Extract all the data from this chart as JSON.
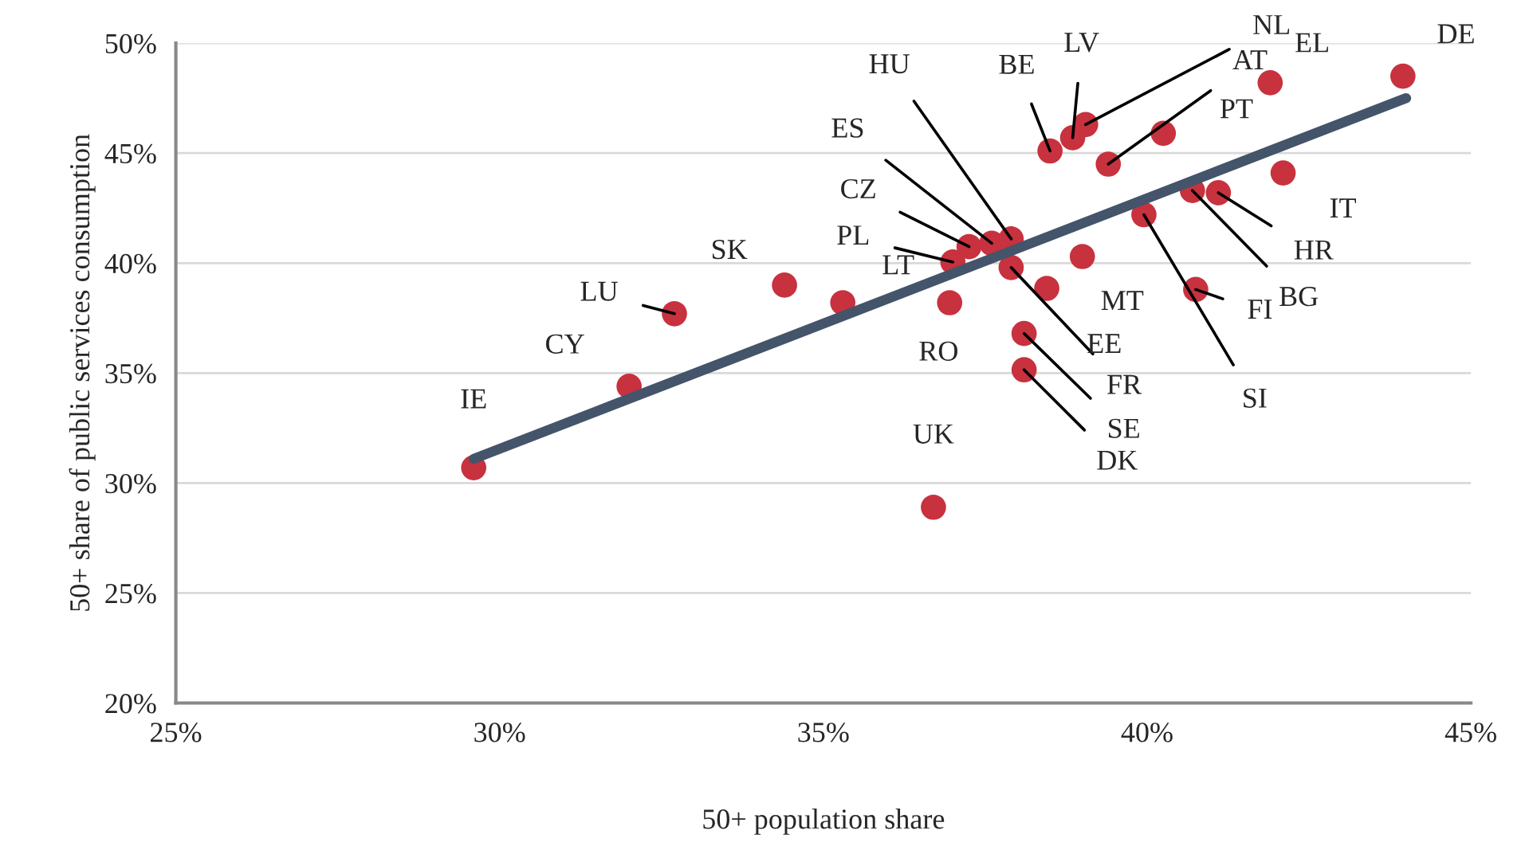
{
  "chart_data": {
    "type": "scatter",
    "xlabel": "50+ population share",
    "ylabel": "50+ share of public services consumption",
    "xlim": [
      25,
      45
    ],
    "ylim": [
      20,
      50
    ],
    "xticks": [
      {
        "value": 25,
        "label": "25%"
      },
      {
        "value": 30,
        "label": "30%"
      },
      {
        "value": 35,
        "label": "35%"
      },
      {
        "value": 40,
        "label": "40%"
      },
      {
        "value": 45,
        "label": "45%"
      }
    ],
    "yticks": [
      {
        "value": 20,
        "label": "20%"
      },
      {
        "value": 25,
        "label": "25%"
      },
      {
        "value": 30,
        "label": "30%"
      },
      {
        "value": 35,
        "label": "35%"
      },
      {
        "value": 40,
        "label": "40%"
      },
      {
        "value": 45,
        "label": "45%"
      },
      {
        "value": 50,
        "label": "50%"
      }
    ],
    "grid": "y",
    "marker": "circle",
    "series": [
      {
        "color": "#c8313e",
        "x": [
          29.6,
          32.0,
          32.7,
          34.4,
          35.3,
          37.0,
          37.25,
          37.6,
          37.9,
          36.95,
          37.9,
          38.45,
          39.0,
          38.1,
          38.1,
          36.7,
          38.5,
          38.85,
          39.05,
          39.4,
          40.25,
          41.9,
          43.95,
          42.1,
          41.1,
          40.7,
          39.95,
          40.75
        ],
        "values": [
          30.7,
          34.4,
          37.7,
          39.0,
          38.2,
          40.05,
          40.75,
          40.9,
          41.1,
          38.2,
          39.8,
          38.85,
          40.3,
          36.8,
          35.15,
          28.9,
          45.1,
          45.7,
          46.3,
          44.5,
          45.9,
          48.2,
          48.5,
          44.1,
          43.2,
          43.3,
          42.2,
          38.8
        ]
      },
      {
        "type": "line",
        "color": "#44546a",
        "x": [
          29.6,
          44.0
        ],
        "values": [
          31.1,
          47.5
        ],
        "line_style": "solid",
        "marker": "none"
      }
    ],
    "annotations": [
      {
        "text": "IE",
        "x": 29.6,
        "y": 30.7
      },
      {
        "text": "CY",
        "x": 32.0,
        "y": 34.4
      },
      {
        "text": "LU",
        "x": 32.7,
        "y": 37.7
      },
      {
        "text": "SK",
        "x": 34.4,
        "y": 39.0
      },
      {
        "text": "LT",
        "x": 35.3,
        "y": 38.2
      },
      {
        "text": "PL",
        "x": 37.0,
        "y": 40.05
      },
      {
        "text": "CZ",
        "x": 37.25,
        "y": 40.75
      },
      {
        "text": "ES",
        "x": 37.6,
        "y": 40.9
      },
      {
        "text": "HU",
        "x": 37.9,
        "y": 41.1
      },
      {
        "text": "RO",
        "x": 36.95,
        "y": 38.2
      },
      {
        "text": "FR",
        "x": 37.9,
        "y": 39.8
      },
      {
        "text": "EE",
        "x": 38.45,
        "y": 38.85
      },
      {
        "text": "MT",
        "x": 39.0,
        "y": 40.3
      },
      {
        "text": "SE",
        "x": 38.1,
        "y": 36.8
      },
      {
        "text": "DK",
        "x": 38.1,
        "y": 35.15
      },
      {
        "text": "UK",
        "x": 36.7,
        "y": 28.9
      },
      {
        "text": "BE",
        "x": 38.5,
        "y": 45.1
      },
      {
        "text": "LV",
        "x": 38.85,
        "y": 45.7
      },
      {
        "text": "NL",
        "x": 39.05,
        "y": 46.3
      },
      {
        "text": "AT",
        "x": 39.4,
        "y": 44.5
      },
      {
        "text": "PT",
        "x": 40.25,
        "y": 45.9
      },
      {
        "text": "EL",
        "x": 41.9,
        "y": 48.2
      },
      {
        "text": "DE",
        "x": 43.95,
        "y": 48.5
      },
      {
        "text": "IT",
        "x": 42.1,
        "y": 44.1
      },
      {
        "text": "HR",
        "x": 41.1,
        "y": 43.2
      },
      {
        "text": "BG",
        "x": 40.7,
        "y": 43.3
      },
      {
        "text": "SI",
        "x": 39.95,
        "y": 42.2
      },
      {
        "text": "FI",
        "x": 40.75,
        "y": 38.8
      }
    ]
  }
}
